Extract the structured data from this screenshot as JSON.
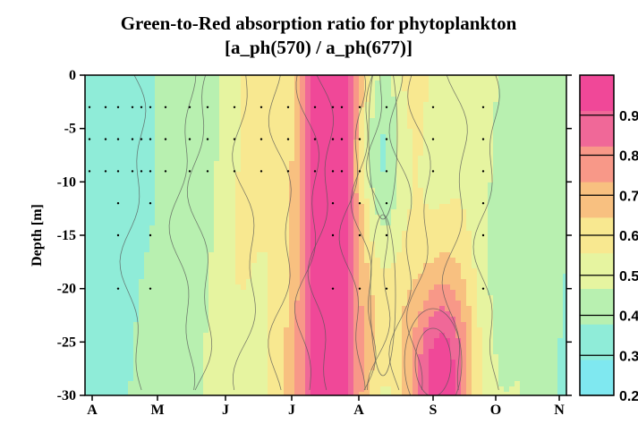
{
  "chart_data": {
    "type": "heatmap",
    "title": "Green-to-Red absorption ratio for phytoplankton",
    "subtitle": "[a_ph(570) / a_ph(677)]",
    "ylabel": "Depth [m]",
    "xlabel": "",
    "x_categories": [
      "A",
      "M",
      "J",
      "J",
      "A",
      "S",
      "O",
      "N"
    ],
    "y_ticks": [
      0,
      -5,
      -10,
      -15,
      -20,
      -25,
      -30
    ],
    "ylim": [
      -30,
      0
    ],
    "colorbar": {
      "ticks": [
        0.2,
        0.3,
        0.4,
        0.5,
        0.6,
        0.7,
        0.8,
        0.9
      ],
      "range": [
        0.2,
        1.0
      ],
      "colors": [
        "#7fe8f0",
        "#8fecd8",
        "#b8f0b0",
        "#e6f4a0",
        "#f8e890",
        "#f8c080",
        "#f89888",
        "#f06898",
        "#f04898"
      ]
    },
    "sample_depths": [
      -3,
      -6,
      -9,
      -12,
      -15,
      -20
    ],
    "grid": false,
    "legend": "right"
  }
}
